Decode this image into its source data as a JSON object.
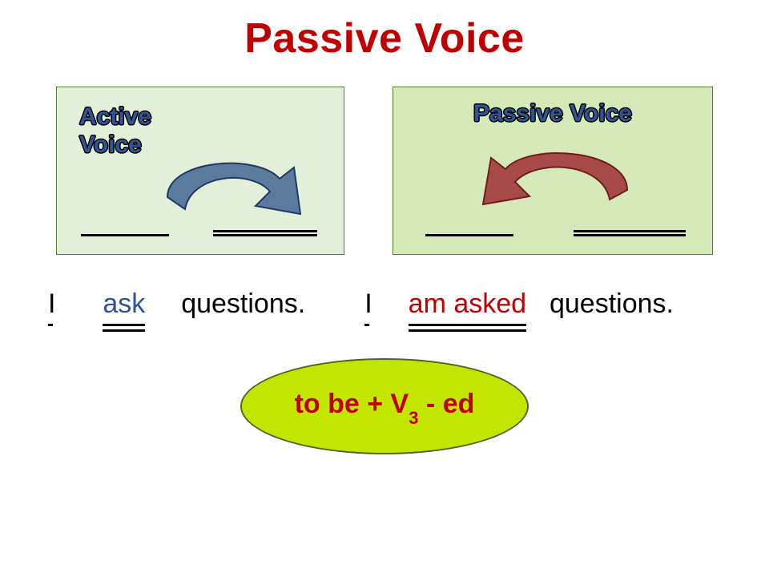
{
  "title": "Passive Voice",
  "boxes": {
    "left": {
      "label": "Active\nVoice",
      "bg_color": "#e2f0d9",
      "border_color": "#548235",
      "label_color": "#2f5597",
      "arrow": {
        "fill": "#5b7b9e",
        "stroke": "#203864",
        "direction": "right"
      }
    },
    "right": {
      "label": "Passive Voice",
      "bg_color": "#d5e8b8",
      "border_color": "#548235",
      "label_color": "#2f5597",
      "arrow": {
        "fill": "#a84a4a",
        "stroke": "#6b1e1e",
        "direction": "left"
      }
    }
  },
  "sentences": {
    "active": {
      "subject": "I",
      "verb": "ask",
      "object": "questions.",
      "verb_color": "#2f5597"
    },
    "passive": {
      "subject": "I",
      "verb": "am asked",
      "object": "questions.",
      "verb_color": "#c00000"
    }
  },
  "formula": {
    "text_before": "to be  +  V",
    "subscript": "3",
    "text_after": " - ed",
    "text_color": "#c00000",
    "ellipse_bg": "#c3e600",
    "ellipse_border": "#4f6228"
  },
  "colors": {
    "title": "#c00000",
    "background": "#ffffff",
    "underline": "#000000"
  },
  "fontsize": {
    "title": 52,
    "box_label": 30,
    "sentence": 34,
    "formula": 34
  }
}
